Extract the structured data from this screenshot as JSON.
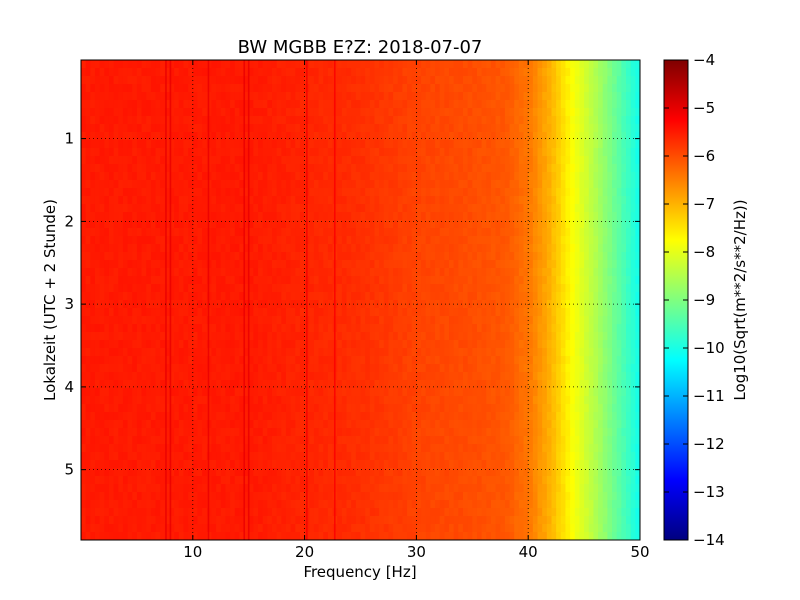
{
  "chart_data": {
    "type": "heatmap",
    "title": "BW MGBB E?Z: 2018-07-07",
    "xlabel": "Frequency [Hz]",
    "ylabel": "Lokalzeit (UTC + 2 Stunde)",
    "xlim": [
      0,
      50
    ],
    "ylim": [
      5.85,
      0.05
    ],
    "x_ticks": [
      10,
      20,
      30,
      40,
      50
    ],
    "y_ticks": [
      1,
      2,
      3,
      4,
      5
    ],
    "grid": true,
    "colormap": "jet",
    "colorbar": {
      "label": "Log10(Sqrt(m**2/s**2/Hz))",
      "range": [
        -14,
        -4
      ],
      "ticks": [
        -4,
        -5,
        -6,
        -7,
        -8,
        -9,
        -10,
        -11,
        -12,
        -13,
        -14
      ]
    },
    "spectral_profile": {
      "frequency_hz": [
        0,
        5,
        10,
        15,
        20,
        25,
        30,
        35,
        38,
        40,
        42,
        44,
        46,
        48,
        50
      ],
      "log10_amplitude": [
        -5.5,
        -5.5,
        -5.5,
        -5.5,
        -5.6,
        -5.7,
        -5.9,
        -6.0,
        -6.1,
        -6.4,
        -7.0,
        -7.8,
        -8.5,
        -9.3,
        -10.1
      ]
    },
    "narrowband_lines_hz": [
      7.6,
      8.0,
      11.4,
      14.6,
      15.0,
      20.2,
      22.7
    ]
  }
}
